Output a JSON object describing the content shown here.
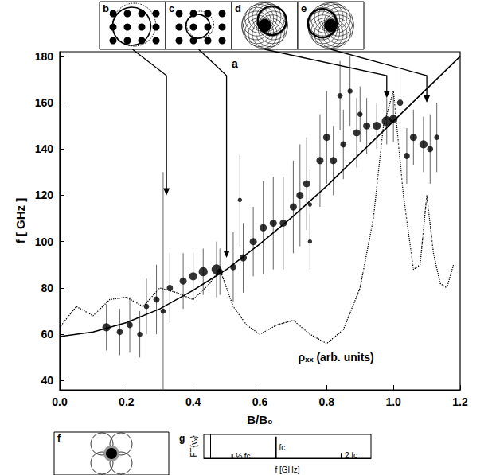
{
  "chart_data": [
    {
      "type": "scatter",
      "panel": "a",
      "xlabel": "B/B₀",
      "ylabel": "f [ GHz ]",
      "xlim": [
        0,
        1.2
      ],
      "xticks": [
        {
          "value": 0,
          "label": "0.0"
        },
        0.2,
        0.4,
        0.6,
        0.8,
        {
          "value": 1,
          "label": "1.0"
        },
        1.2
      ],
      "ylim": [
        36,
        182
      ],
      "yticks": [
        40,
        60,
        80,
        100,
        120,
        140,
        160,
        180
      ],
      "grid": false,
      "series": [
        {
          "type": "scatter",
          "marker": "circle",
          "color": "#000000",
          "x": [
            0.14,
            0.18,
            0.21,
            0.24,
            0.26,
            0.29,
            0.31,
            0.33,
            0.37,
            0.4,
            0.43,
            0.47,
            0.48,
            0.52,
            0.54,
            0.55,
            0.58,
            0.61,
            0.64,
            0.67,
            0.7,
            0.72,
            0.74,
            0.75,
            0.75,
            0.78,
            0.8,
            0.82,
            0.84,
            0.85,
            0.87,
            0.89,
            0.9,
            0.92,
            0.95,
            0.98,
            1.0,
            1.02,
            1.04,
            1.06,
            1.09,
            1.11,
            1.13
          ],
          "values": [
            63,
            61,
            64,
            60,
            72,
            75,
            70,
            80,
            83,
            85,
            87,
            88,
            87,
            89,
            118,
            93,
            100,
            106,
            108,
            108,
            115,
            120,
            125,
            116,
            100,
            135,
            145,
            135,
            163,
            142,
            165,
            147,
            155,
            150,
            150,
            152,
            153,
            160,
            137,
            145,
            142,
            140,
            145
          ],
          "sizes": [
            3,
            2,
            2,
            1.5,
            1.5,
            2,
            1.5,
            2,
            2.5,
            3,
            3.5,
            4,
            2,
            2,
            1,
            2.5,
            2.5,
            2.5,
            2.5,
            2.5,
            2.5,
            2.5,
            2.5,
            1,
            1,
            2.5,
            2.5,
            2.5,
            1.5,
            2,
            1.5,
            2.5,
            1.5,
            2.5,
            3,
            4,
            3,
            2,
            2,
            2.5,
            3,
            2,
            1.5
          ],
          "errors": [
            10,
            10,
            12,
            10,
            12,
            15,
            60,
            15,
            12,
            10,
            10,
            12,
            10,
            15,
            20,
            15,
            15,
            20,
            20,
            20,
            20,
            22,
            20,
            15,
            12,
            20,
            20,
            15,
            15,
            15,
            15,
            15,
            12,
            12,
            10,
            10,
            10,
            15,
            12,
            12,
            12,
            15,
            15
          ]
        },
        {
          "type": "line",
          "line_style": "solid",
          "color": "#000000",
          "x": [
            0,
            0.1,
            0.2,
            0.3,
            0.4,
            0.5,
            0.6,
            0.7,
            0.8,
            0.9,
            1.0,
            1.1,
            1.2
          ],
          "values": [
            59,
            61,
            65,
            71,
            79,
            88,
            99,
            111,
            124,
            138,
            152,
            166,
            180
          ]
        },
        {
          "type": "line",
          "line_style": "dotted",
          "color": "#000000",
          "x": [
            0,
            0.05,
            0.1,
            0.15,
            0.2,
            0.25,
            0.3,
            0.35,
            0.4,
            0.45,
            0.48,
            0.52,
            0.56,
            0.6,
            0.65,
            0.7,
            0.75,
            0.8,
            0.85,
            0.9,
            0.94,
            0.97,
            1.0,
            1.03,
            1.06,
            1.08,
            1.1,
            1.12,
            1.14,
            1.16,
            1.18
          ],
          "values": [
            63,
            72,
            68,
            75,
            76,
            72,
            80,
            78,
            75,
            82,
            88,
            72,
            64,
            60,
            64,
            66,
            60,
            56,
            62,
            80,
            110,
            150,
            165,
            120,
            88,
            90,
            120,
            95,
            82,
            80,
            90
          ]
        }
      ],
      "annotations": [
        {
          "text": "ρₓₓ (arb. units)",
          "x": 0.71,
          "y": 50
        }
      ],
      "arrows": [
        {
          "panel": "b",
          "x": 0.32,
          "y": 120
        },
        {
          "panel": "c",
          "x": 0.5,
          "y": 93
        },
        {
          "panel": "d",
          "x": 0.98,
          "y": 162
        },
        {
          "panel": "e",
          "x": 1.1,
          "y": 160
        }
      ]
    },
    {
      "type": "bar",
      "panel": "g",
      "xlabel": "f [GHz]",
      "ylabel": "FT{vₓ}",
      "tick_labels": false,
      "color": "#000000",
      "xlim": [
        -0.1,
        2.45
      ],
      "ylim": [
        0,
        1.1
      ],
      "x": [
        0.333,
        1,
        2
      ],
      "values": [
        0.18,
        1,
        0.25
      ],
      "annotations": [
        {
          "text": "⅓ fc",
          "x": 0.333
        },
        {
          "text": "fc",
          "x": 1
        },
        {
          "text": "2 fc",
          "x": 2
        }
      ]
    }
  ],
  "diagrams": [
    {
      "label": "b",
      "type": "lattice"
    },
    {
      "label": "c",
      "type": "lattice"
    },
    {
      "label": "d",
      "type": "orbits"
    },
    {
      "label": "e",
      "type": "orbits"
    },
    {
      "label": "f",
      "type": "clover"
    }
  ]
}
